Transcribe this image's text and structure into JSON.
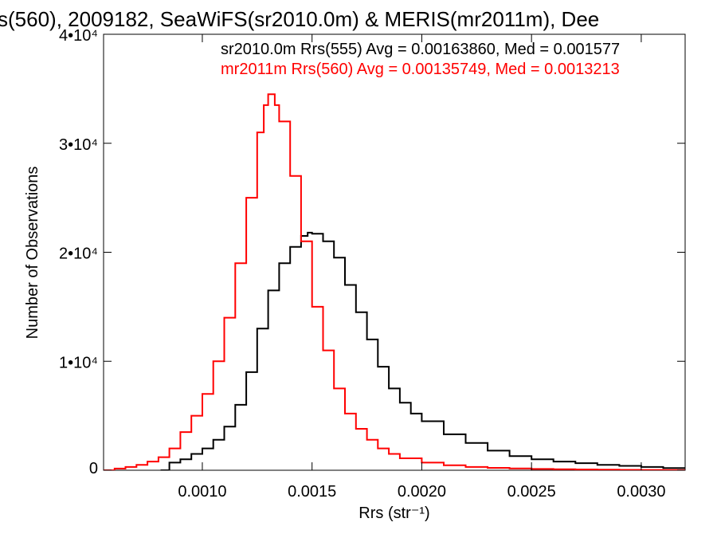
{
  "chart_data": {
    "type": "line",
    "title": "s(560), 2009182, SeaWiFS(sr2010.0m) & MERIS(mr2011m), Dee",
    "xlabel": "Rrs (str⁻¹)",
    "ylabel": "Number of Observations",
    "xlim": [
      0.00055,
      0.0032
    ],
    "ylim": [
      0,
      40000
    ],
    "xticks": [
      0.001,
      0.0015,
      0.002,
      0.0025,
      0.003
    ],
    "xtick_labels": [
      "0.0010",
      "0.0015",
      "0.0020",
      "0.0025",
      "0.0030"
    ],
    "yticks": [
      0,
      10000,
      20000,
      30000,
      40000
    ],
    "ytick_labels": [
      "0",
      "1•10⁴",
      "2•10⁴",
      "3•10⁴",
      "4•10⁴"
    ],
    "grid": false,
    "legend_placement": "top-right",
    "series": [
      {
        "name": "sr2010.0m Rrs(555) Avg = 0.00163860, Med = 0.001577",
        "color": "#000000",
        "step": true,
        "x": [
          0.00081,
          0.00085,
          0.0009,
          0.00095,
          0.001,
          0.00105,
          0.0011,
          0.00115,
          0.0012,
          0.00125,
          0.0013,
          0.00135,
          0.0014,
          0.00145,
          0.00148,
          0.0015,
          0.00155,
          0.0016,
          0.00165,
          0.0017,
          0.00175,
          0.0018,
          0.00185,
          0.0019,
          0.00195,
          0.002,
          0.0021,
          0.0022,
          0.0023,
          0.0024,
          0.0025,
          0.0026,
          0.0027,
          0.0028,
          0.0029,
          0.003,
          0.0031,
          0.0032
        ],
        "y": [
          0,
          700,
          1000,
          1500,
          2000,
          2800,
          4000,
          6000,
          9000,
          13000,
          16500,
          19000,
          20500,
          21500,
          21800,
          21700,
          21000,
          19500,
          17000,
          14500,
          12000,
          9500,
          7500,
          6200,
          5200,
          4500,
          3300,
          2500,
          1800,
          1300,
          1000,
          800,
          650,
          500,
          400,
          300,
          200,
          150
        ]
      },
      {
        "name": "mr2011m Rrs(560) Avg = 0.00135749, Med = 0.0013213",
        "color": "#ff0000",
        "step": true,
        "x": [
          0.00055,
          0.0006,
          0.00065,
          0.0007,
          0.00075,
          0.0008,
          0.00085,
          0.0009,
          0.00095,
          0.001,
          0.00105,
          0.0011,
          0.00115,
          0.0012,
          0.00125,
          0.00128,
          0.0013,
          0.00133,
          0.00135,
          0.0014,
          0.00145,
          0.0015,
          0.00155,
          0.0016,
          0.00165,
          0.0017,
          0.00175,
          0.0018,
          0.00185,
          0.0019,
          0.002,
          0.0021,
          0.0022,
          0.0023,
          0.0024,
          0.0025,
          0.0026,
          0.0027,
          0.0028,
          0.0029,
          0.003,
          0.0031,
          0.0032
        ],
        "y": [
          0,
          150,
          300,
          500,
          800,
          1200,
          2000,
          3500,
          5000,
          7000,
          10000,
          14000,
          19000,
          25000,
          31000,
          33500,
          34500,
          33500,
          32000,
          27000,
          21000,
          15000,
          11000,
          7500,
          5200,
          3800,
          2800,
          2000,
          1500,
          1100,
          700,
          450,
          300,
          220,
          160,
          120,
          90,
          70,
          50,
          40,
          30,
          20,
          10
        ]
      }
    ]
  }
}
